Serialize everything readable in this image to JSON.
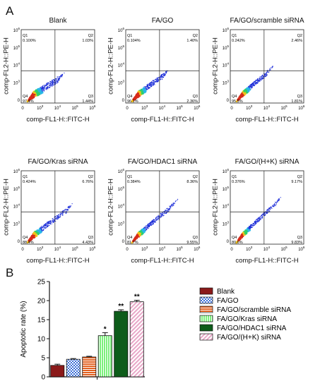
{
  "panel_labels": [
    "A",
    "B"
  ],
  "flow_common": {
    "y_axis_label": "comp-FL2-H::PE-H",
    "x_axis_label": "comp-FL1-H::FITC-H",
    "ticks": [
      "0",
      "10",
      "10",
      "10",
      "10"
    ],
    "tick_exps": [
      "",
      "3",
      "4",
      "5",
      "6"
    ]
  },
  "flow_plots": [
    {
      "title": "Blank",
      "q1": "0.100%",
      "q2": "1.03%",
      "q3": "1.44%",
      "q4": "97.4%"
    },
    {
      "title": "FA/GO",
      "q1": "0.104%",
      "q2": "1.40%",
      "q3": "2.36%",
      "q4": "96.1%"
    },
    {
      "title": "FA/GO/scramble siRNA",
      "q1": "0.242%",
      "q2": "2.46%",
      "q3": "1.81%",
      "q4": "95.5%"
    },
    {
      "title": "FA/GO/Kras siRNA",
      "q1": "0.424%",
      "q2": "6.76%",
      "q3": "4.43%",
      "q4": "88.4%"
    },
    {
      "title": "FA/GO/HDAC1 siRNA",
      "q1": "0.384%",
      "q2": "8.36%",
      "q3": "9.55%",
      "q4": "81.7%"
    },
    {
      "title": "FA/GO/(H+K) siRNA",
      "q1": "0.376%",
      "q2": "9.17%",
      "q3": "9.83%",
      "q4": "80.6%"
    }
  ],
  "chart_data": {
    "type": "bar",
    "ylabel": "Apoptotic rate (%)",
    "ylim": [
      0,
      25
    ],
    "yticks": [
      "0",
      "5",
      "10",
      "15",
      "20",
      "25"
    ],
    "categories": [
      "Blank",
      "FA/GO",
      "FA/GO/scramble siRNA",
      "FA/GO/Kras siRNA",
      "FA/GO/HDAC1 siRNA",
      "FA/GO/(H+K) siRNA"
    ],
    "values": [
      3.0,
      4.6,
      5.2,
      10.8,
      17.2,
      19.7
    ],
    "errors": [
      0.3,
      0.2,
      0.2,
      0.8,
      0.4,
      0.4
    ],
    "significance": [
      "",
      "",
      "",
      "*",
      "**",
      "**"
    ],
    "colors": [
      "#8b1a1a",
      "#3a6fd8",
      "#e2601f",
      "#7cf07c",
      "#0d5c1a",
      "#e8a8c8"
    ],
    "legend_position": "right"
  }
}
